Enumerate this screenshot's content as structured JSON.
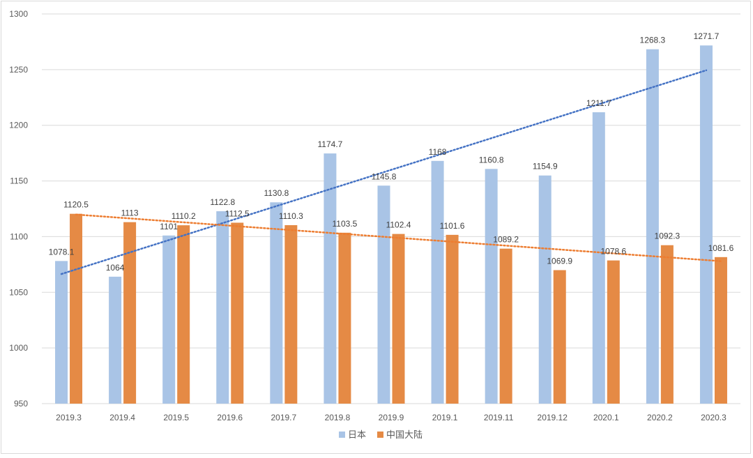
{
  "chart_data": {
    "type": "bar",
    "categories": [
      "2019.3",
      "2019.4",
      "2019.5",
      "2019.6",
      "2019.7",
      "2019.8",
      "2019.9",
      "2019.1",
      "2019.11",
      "2019.12",
      "2020.1",
      "2020.2",
      "2020.3"
    ],
    "series": [
      {
        "name": "日本",
        "color": "#a9c4e6",
        "values": [
          1078.1,
          1064,
          1101,
          1122.8,
          1130.8,
          1174.7,
          1145.8,
          1168,
          1160.8,
          1154.9,
          1211.7,
          1268.3,
          1271.7
        ],
        "labels": [
          "1078.1",
          "1064",
          "1101",
          "1122.8",
          "1130.8",
          "1174.7",
          "1145.8",
          "1168",
          "1160.8",
          "1154.9",
          "1211.7",
          "1268.3",
          "1271.7"
        ],
        "trendline": {
          "type": "linear",
          "style": "dotted",
          "color": "#4472c4"
        }
      },
      {
        "name": "中国大陆",
        "color": "#e58a45",
        "values": [
          1120.5,
          1113,
          1110.2,
          1112.5,
          1110.3,
          1103.5,
          1102.4,
          1101.6,
          1089.2,
          1069.9,
          1078.6,
          1092.3,
          1081.6
        ],
        "labels": [
          "1120.5",
          "1113",
          "1110.2",
          "1112.5",
          "1110.3",
          "1103.5",
          "1102.4",
          "1101.6",
          "1089.2",
          "1069.9",
          "1078.6",
          "1092.3",
          "1081.6"
        ],
        "trendline": {
          "type": "linear",
          "style": "dotted",
          "color": "#ed7d31"
        }
      }
    ],
    "ylim": [
      950,
      1300
    ],
    "yticks": [
      "950",
      "1000",
      "1050",
      "1100",
      "1150",
      "1200",
      "1250",
      "1300"
    ],
    "title": "",
    "xlabel": "",
    "ylabel": "",
    "grid": true,
    "legend_position": "bottom"
  }
}
